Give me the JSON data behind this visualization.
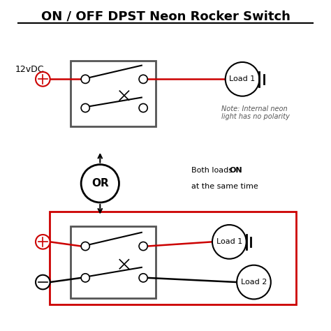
{
  "title": "ON / OFF DPST Neon Rocker Switch",
  "background_color": "#ffffff",
  "title_fontsize": 13,
  "label_12vdc": "12vDC",
  "note_text": "Note: Internal neon\nlight has no polarity",
  "both_loads_text1": "Both loads ",
  "both_loads_text2": "ON",
  "both_loads_text3": "\nat the same time",
  "or_label": "OR",
  "load1_label": "Load 1",
  "load2_label": "Load 2",
  "colors": {
    "red": "#cc0000",
    "black": "#000000",
    "gray": "#555555",
    "box_gray": "#555555"
  }
}
